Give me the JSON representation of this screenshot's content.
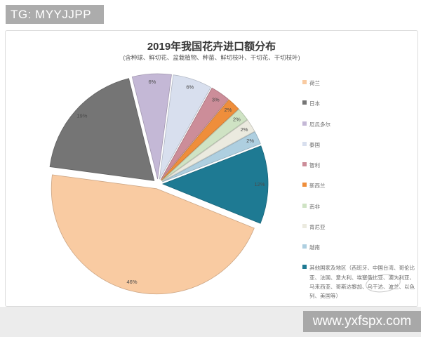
{
  "page": {
    "watermark_top_left": "TG: MYYJJPP",
    "watermark_bottom_right": "www.yxfspx.com"
  },
  "chart_data": {
    "type": "pie",
    "title": "2019年我国花卉进口额分布",
    "subtitle": "(含种球、鲜切花、盆栽植物、种苗、鲜切枝叶、干切花、干切枝叶)",
    "unit": "%",
    "total": 100,
    "exploded": true,
    "legend_position": "right",
    "start_angle_clockwise_from_top_deg": 112,
    "series": [
      {
        "key": "netherlands",
        "name": "荷兰",
        "value": 46,
        "label": "46%",
        "color": "#F9CBA2"
      },
      {
        "key": "japan",
        "name": "日本",
        "value": 19,
        "label": "19%",
        "color": "#757575"
      },
      {
        "key": "ecuador",
        "name": "厄瓜多尔",
        "value": 6,
        "label": "6%",
        "color": "#C4B8D6"
      },
      {
        "key": "thailand",
        "name": "泰国",
        "value": 6,
        "label": "6%",
        "color": "#D8DFEE"
      },
      {
        "key": "chile",
        "name": "智利",
        "value": 3,
        "label": "3%",
        "color": "#CC8D99"
      },
      {
        "key": "new-zealand",
        "name": "新西兰",
        "value": 2,
        "label": "2%",
        "color": "#EF8E3B"
      },
      {
        "key": "south-africa",
        "name": "南非",
        "value": 2,
        "label": "2%",
        "color": "#CFE3C4"
      },
      {
        "key": "kenya",
        "name": "肯尼亚",
        "value": 2,
        "label": "2%",
        "color": "#EBEADF"
      },
      {
        "key": "vietnam",
        "name": "越南",
        "value": 2,
        "label": "2%",
        "color": "#AECFE0"
      },
      {
        "key": "others",
        "name": "其他国家及地区（西班牙、中国台湾、哥伦比亚、法国、意大利、埃塞俄比亚、澳大利亚、马来西亚、哥斯达黎加、乌干达、波兰、以色列、美国等）",
        "value": 12,
        "label": "12%",
        "color": "#1E7A93"
      }
    ]
  }
}
